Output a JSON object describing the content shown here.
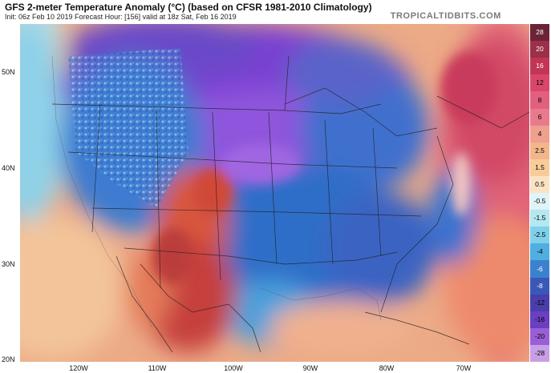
{
  "header": {
    "title": "GFS 2-meter Temperature Anomaly (°C) (based on CFSR 1981-2010 Climatology)",
    "subtitle": "Init: 06z Feb 10 2019   Forecast Hour: [156]   valid at 18z Sat, Feb 16 2019",
    "brand": "TROPICALTIDBITS.COM"
  },
  "axes": {
    "lat_labels": [
      "50N",
      "40N",
      "30N",
      "20N"
    ],
    "lon_labels": [
      "120W",
      "110W",
      "100W",
      "90W",
      "80W",
      "70W"
    ]
  },
  "colorbar": {
    "levels": [
      "28",
      "20",
      "16",
      "12",
      "8",
      "6",
      "4",
      "2.5",
      "1.5",
      "0.5",
      "-0.5",
      "-1.5",
      "-2.5",
      "-4",
      "-6",
      "-8",
      "-12",
      "-16",
      "-20",
      "-28"
    ],
    "colors": [
      "#6b2436",
      "#9c2f4a",
      "#c23555",
      "#d9466b",
      "#e2607e",
      "#e87a8c",
      "#ee9f8e",
      "#f3b58a",
      "#f7cc99",
      "#fbe2c2",
      "#dff4f6",
      "#b3e8f0",
      "#7fd0ea",
      "#50aee0",
      "#3b82cd",
      "#3a58b8",
      "#4a3eaa",
      "#6a3fc0",
      "#9a5fd6",
      "#c89fe6"
    ]
  },
  "map": {
    "colors": {
      "ocean_warm": "#e8907a",
      "ocean_hot": "#d84a5e",
      "cold_blue": "#2f6fc9",
      "cold_purple": "#8a55d8",
      "warm_red": "#d0453a",
      "borders": "#222222"
    }
  }
}
